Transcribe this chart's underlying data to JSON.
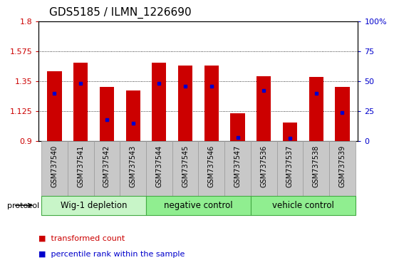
{
  "title": "GDS5185 / ILMN_1226690",
  "samples": [
    "GSM737540",
    "GSM737541",
    "GSM737542",
    "GSM737543",
    "GSM737544",
    "GSM737545",
    "GSM737546",
    "GSM737547",
    "GSM737536",
    "GSM737537",
    "GSM737538",
    "GSM737539"
  ],
  "bar_heights": [
    1.425,
    1.49,
    1.305,
    1.28,
    1.49,
    1.465,
    1.465,
    1.11,
    1.385,
    1.04,
    1.38,
    1.305
  ],
  "percentile_ranks": [
    40,
    48,
    18,
    15,
    48,
    46,
    46,
    3,
    42,
    2,
    40,
    24
  ],
  "groups": [
    {
      "label": "Wig-1 depletion",
      "start": 0,
      "end": 4,
      "color": "#c8f5c8"
    },
    {
      "label": "negative control",
      "start": 4,
      "end": 8,
      "color": "#90ee90"
    },
    {
      "label": "vehicle control",
      "start": 8,
      "end": 12,
      "color": "#90ee90"
    }
  ],
  "y_min": 0.9,
  "y_max": 1.8,
  "y_ticks": [
    0.9,
    1.125,
    1.35,
    1.575,
    1.8
  ],
  "right_y_ticks": [
    0,
    25,
    50,
    75,
    100
  ],
  "bar_color": "#cc0000",
  "dot_color": "#0000cc",
  "group_border_color": "#44aa44",
  "tick_label_color_left": "#cc0000",
  "tick_label_color_right": "#0000cc",
  "bar_width": 0.55,
  "baseline": 0.9,
  "xtick_bg": "#c8c8c8",
  "xtick_border": "#999999"
}
